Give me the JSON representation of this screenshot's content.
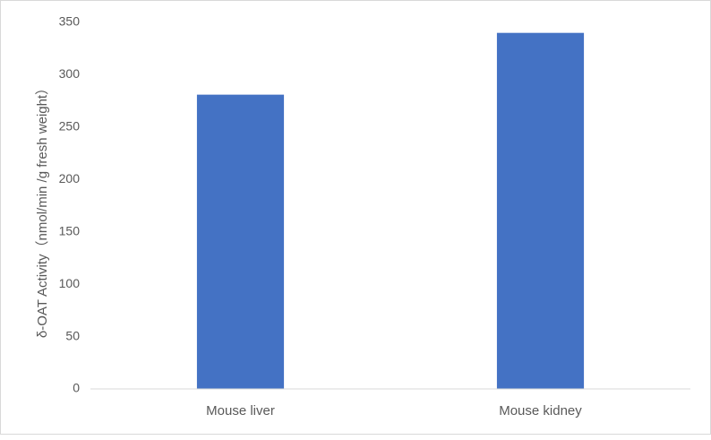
{
  "chart_data": {
    "type": "bar",
    "title": "",
    "categories": [
      "Mouse liver",
      "Mouse kidney"
    ],
    "values": [
      281,
      340
    ],
    "xlabel": "",
    "ylabel": "δ-OAT Activity（nmol/min /g fresh weight）",
    "ylim": [
      0,
      350
    ],
    "yticks": [
      0,
      50,
      100,
      150,
      200,
      250,
      300,
      350
    ],
    "grid": false,
    "legend": "none",
    "bar_color": "#4472C4"
  }
}
